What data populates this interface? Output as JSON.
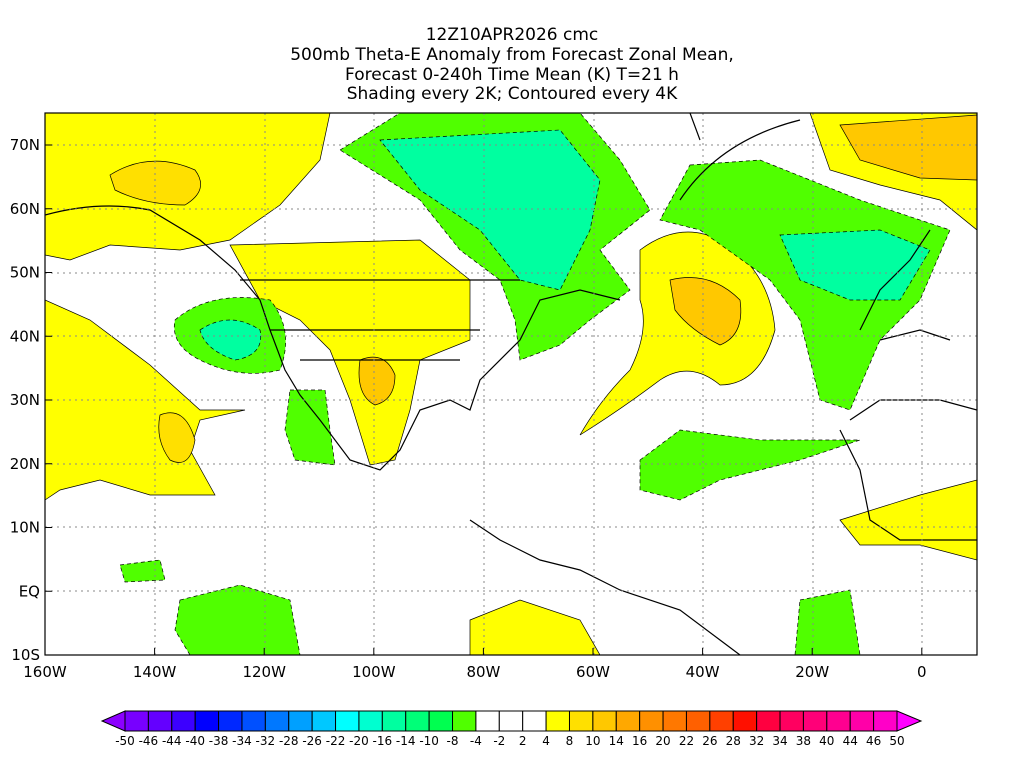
{
  "title": {
    "line1": "12Z10APR2026 cmc",
    "line2": "500mb Theta-E Anomaly from Forecast Zonal Mean,",
    "line3": "Forecast 0-240h Time Mean (K) T=21 h",
    "line4": "Shading every 2K; Contoured every 4K"
  },
  "axes": {
    "x_ticks": [
      "160W",
      "140W",
      "120W",
      "100W",
      "80W",
      "60W",
      "40W",
      "20W",
      "0"
    ],
    "y_ticks": [
      "70N",
      "60N",
      "50N",
      "40N",
      "30N",
      "20N",
      "10N",
      "EQ",
      "10S"
    ]
  },
  "colorbar": {
    "labels": [
      "-50",
      "-46",
      "-44",
      "-40",
      "-38",
      "-34",
      "-32",
      "-28",
      "-26",
      "-22",
      "-20",
      "-16",
      "-14",
      "-10",
      "-8",
      "-4",
      "-2",
      "2",
      "4",
      "8",
      "10",
      "14",
      "16",
      "20",
      "22",
      "26",
      "28",
      "32",
      "34",
      "38",
      "40",
      "44",
      "46",
      "50"
    ],
    "low_arrow_color": "#8c00ff",
    "high_arrow_color": "#ff00ff",
    "colors": [
      "#7800ff",
      "#6400ff",
      "#3c00ff",
      "#0000ff",
      "#0028ff",
      "#0050ff",
      "#0078ff",
      "#00a0ff",
      "#00c8ff",
      "#00ffff",
      "#00ffd0",
      "#00ffa0",
      "#00ff78",
      "#00ff50",
      "#50ff00",
      "#ffffff",
      "#ffffff",
      "#ffffff",
      "#ffff00",
      "#ffe000",
      "#ffc800",
      "#ffa800",
      "#ff9000",
      "#ff7800",
      "#ff6000",
      "#ff4000",
      "#ff1000",
      "#ff0040",
      "#ff0060",
      "#ff0078",
      "#ff0090",
      "#ff00a8",
      "#ff00c8"
    ]
  },
  "palette": {
    "green": "#50ff00",
    "teal": "#00ffa0",
    "cyan": "#00ffd0",
    "yellow": "#ffff00",
    "gold": "#ffe000",
    "orange": "#ffc800",
    "darkorange": "#ffa800"
  }
}
